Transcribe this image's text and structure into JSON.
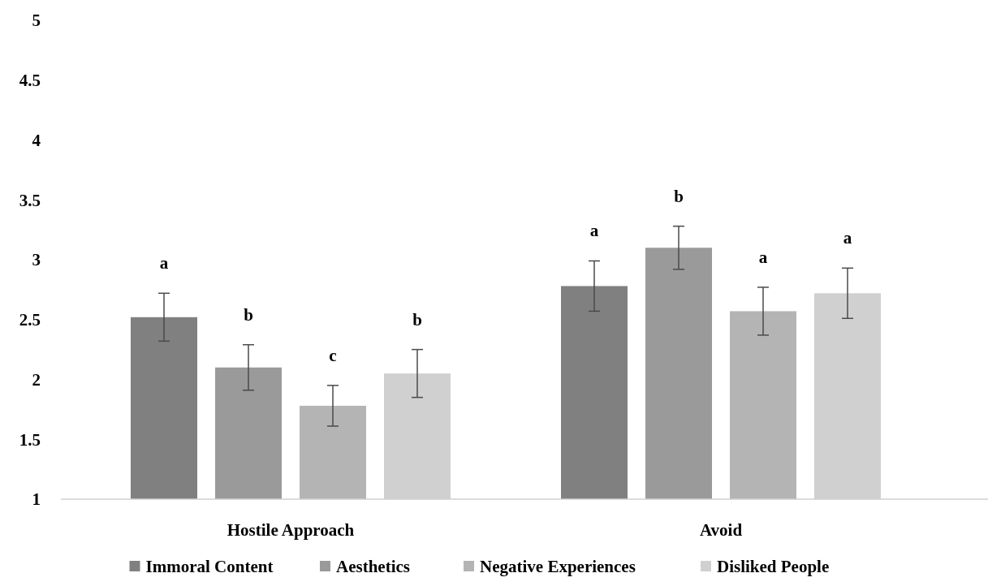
{
  "chart_data": {
    "type": "bar",
    "categories": [
      "Hostile Approach",
      "Avoid"
    ],
    "series": [
      {
        "name": "Immoral Content",
        "color": "#808080",
        "values": [
          2.52,
          2.78
        ],
        "errors": [
          0.2,
          0.21
        ],
        "value_labels": [
          "a",
          "a"
        ]
      },
      {
        "name": "Aesthetics",
        "color": "#9a9a9a",
        "values": [
          2.1,
          3.1
        ],
        "errors": [
          0.19,
          0.18
        ],
        "value_labels": [
          "b",
          "b"
        ]
      },
      {
        "name": "Negative Experiences",
        "color": "#b4b4b4",
        "values": [
          1.78,
          2.57
        ],
        "errors": [
          0.17,
          0.2
        ],
        "value_labels": [
          "c",
          "a"
        ]
      },
      {
        "name": "Disliked People",
        "color": "#d0d0d0",
        "values": [
          2.05,
          2.72
        ],
        "errors": [
          0.2,
          0.21
        ],
        "value_labels": [
          "b",
          "a"
        ]
      }
    ],
    "ylim": [
      1,
      5
    ],
    "yticks": [
      1,
      1.5,
      2,
      2.5,
      3,
      3.5,
      4,
      4.5,
      5
    ],
    "legend": "bottom",
    "grid": false
  }
}
